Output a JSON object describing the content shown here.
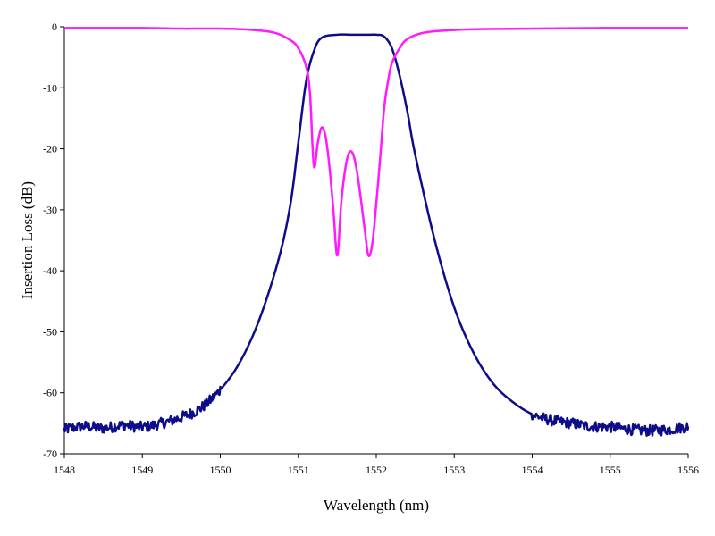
{
  "chart_data": {
    "type": "line",
    "title": "",
    "xlabel": "Wavelength (nm)",
    "ylabel": "Insertion Loss (dB)",
    "xlim": [
      1548,
      1556
    ],
    "ylim": [
      -70,
      0
    ],
    "xticks": [
      1548,
      1549,
      1550,
      1551,
      1552,
      1553,
      1554,
      1555,
      1556
    ],
    "yticks": [
      0,
      -10,
      -20,
      -30,
      -40,
      -50,
      -60,
      -70
    ],
    "grid": false,
    "legend": "none",
    "series": [
      {
        "color": "#0d0d8c",
        "noisy_tail_xrange": [
          [
            1548.0,
            1550.0
          ],
          [
            1554.0,
            1556.0
          ]
        ],
        "x": [
          1548.0,
          1548.25,
          1548.5,
          1548.75,
          1549.0,
          1549.25,
          1549.5,
          1549.75,
          1550.0,
          1550.25,
          1550.5,
          1550.75,
          1550.9,
          1551.0,
          1551.1,
          1551.2,
          1551.3,
          1551.5,
          1551.7,
          1551.9,
          1552.0,
          1552.1,
          1552.2,
          1552.3,
          1552.4,
          1552.5,
          1552.75,
          1553.0,
          1553.25,
          1553.5,
          1553.75,
          1554.0,
          1554.25,
          1554.5,
          1554.75,
          1555.0,
          1555.25,
          1555.5,
          1555.75,
          1556.0
        ],
        "y": [
          -66.0,
          -65.5,
          -65.8,
          -65.3,
          -65.6,
          -65.0,
          -64.0,
          -62.5,
          -59.5,
          -55.0,
          -48.0,
          -38.0,
          -29.0,
          -19.0,
          -9.0,
          -4.0,
          -1.8,
          -1.3,
          -1.3,
          -1.3,
          -1.3,
          -1.6,
          -3.5,
          -8.0,
          -14.0,
          -21.0,
          -35.0,
          -46.0,
          -53.5,
          -58.5,
          -61.5,
          -63.5,
          -64.5,
          -65.0,
          -65.5,
          -65.6,
          -66.0,
          -66.2,
          -66.0,
          -65.5
        ]
      },
      {
        "color": "#ff1aff",
        "x": [
          1548.0,
          1548.5,
          1549.0,
          1549.5,
          1550.0,
          1550.4,
          1550.7,
          1550.9,
          1551.0,
          1551.1,
          1551.15,
          1551.2,
          1551.25,
          1551.3,
          1551.35,
          1551.4,
          1551.45,
          1551.5,
          1551.55,
          1551.6,
          1551.65,
          1551.7,
          1551.75,
          1551.8,
          1551.85,
          1551.9,
          1551.95,
          1552.0,
          1552.05,
          1552.1,
          1552.15,
          1552.2,
          1552.3,
          1552.4,
          1552.6,
          1552.9,
          1553.3,
          1554.0,
          1555.0,
          1556.0
        ],
        "y": [
          -0.2,
          -0.2,
          -0.2,
          -0.3,
          -0.3,
          -0.5,
          -1.0,
          -2.2,
          -3.5,
          -6.5,
          -11.0,
          -22.8,
          -19.0,
          -16.5,
          -18.0,
          -23.0,
          -30.0,
          -37.5,
          -29.0,
          -23.5,
          -20.7,
          -20.8,
          -23.5,
          -28.0,
          -33.0,
          -37.5,
          -35.5,
          -29.0,
          -21.5,
          -13.5,
          -9.0,
          -6.0,
          -3.5,
          -2.0,
          -1.0,
          -0.6,
          -0.4,
          -0.3,
          -0.2,
          -0.2
        ]
      }
    ]
  }
}
